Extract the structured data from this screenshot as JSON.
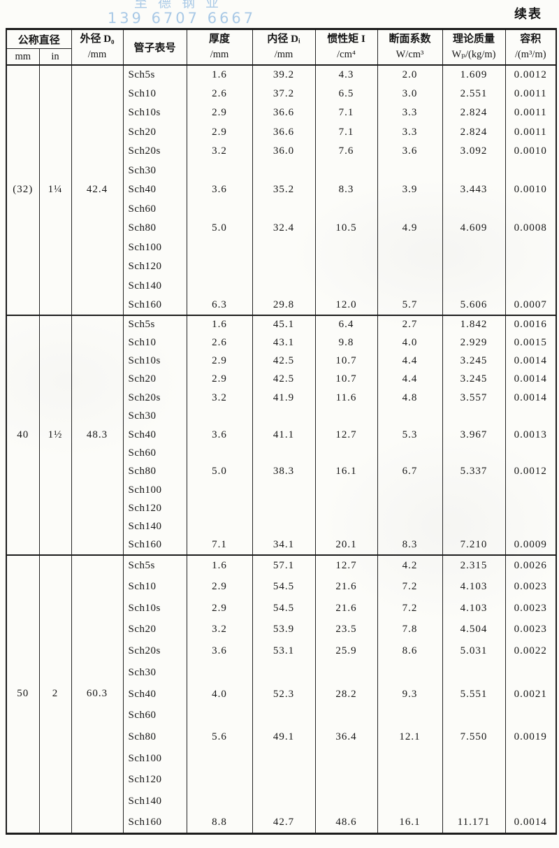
{
  "continuation_label": "续表",
  "watermark": {
    "company": "至德钢业",
    "phone": "139 6707 6667",
    "color": "#a9c9e6"
  },
  "table": {
    "header": {
      "nominal_group": "公称直径",
      "mm": "mm",
      "in": "in",
      "outer_diameter": {
        "title": "外径 D₀",
        "unit": "/mm"
      },
      "schedule": "管子表号",
      "thickness": {
        "title": "厚度",
        "unit": "/mm"
      },
      "inner_diameter": {
        "title": "内径 Dᵢ",
        "unit": "/mm"
      },
      "moment_of_inertia": {
        "title": "惯性矩 I",
        "unit": "/cm⁴"
      },
      "section_modulus": {
        "title": "断面系数",
        "unit": "W/cm³"
      },
      "theoretical_mass": {
        "title": "理论质量",
        "unit": "Wₚ/(kg/m)"
      },
      "volume": {
        "title": "容积",
        "unit": "/(m³/m)"
      }
    },
    "row_fields": [
      "schedule",
      "thickness",
      "inner_diameter",
      "moment_of_inertia",
      "section_modulus",
      "theoretical_mass",
      "volume"
    ],
    "sections": [
      {
        "nominal_mm": "(32)",
        "nominal_in": "1¼",
        "outer_diameter": "42.4",
        "rows": [
          [
            "Sch5s",
            "1.6",
            "39.2",
            "4.3",
            "2.0",
            "1.609",
            "0.0012"
          ],
          [
            "Sch10",
            "2.6",
            "37.2",
            "6.5",
            "3.0",
            "2.551",
            "0.0011"
          ],
          [
            "Sch10s",
            "2.9",
            "36.6",
            "7.1",
            "3.3",
            "2.824",
            "0.0011"
          ],
          [
            "Sch20",
            "2.9",
            "36.6",
            "7.1",
            "3.3",
            "2.824",
            "0.0011"
          ],
          [
            "Sch20s",
            "3.2",
            "36.0",
            "7.6",
            "3.6",
            "3.092",
            "0.0010"
          ],
          [
            "Sch30",
            "",
            "",
            "",
            "",
            "",
            ""
          ],
          [
            "Sch40",
            "3.6",
            "35.2",
            "8.3",
            "3.9",
            "3.443",
            "0.0010"
          ],
          [
            "Sch60",
            "",
            "",
            "",
            "",
            "",
            ""
          ],
          [
            "Sch80",
            "5.0",
            "32.4",
            "10.5",
            "4.9",
            "4.609",
            "0.0008"
          ],
          [
            "Sch100",
            "",
            "",
            "",
            "",
            "",
            ""
          ],
          [
            "Sch120",
            "",
            "",
            "",
            "",
            "",
            ""
          ],
          [
            "Sch140",
            "",
            "",
            "",
            "",
            "",
            ""
          ],
          [
            "Sch160",
            "6.3",
            "29.8",
            "12.0",
            "5.7",
            "5.606",
            "0.0007"
          ]
        ]
      },
      {
        "nominal_mm": "40",
        "nominal_in": "1½",
        "outer_diameter": "48.3",
        "rows": [
          [
            "Sch5s",
            "1.6",
            "45.1",
            "6.4",
            "2.7",
            "1.842",
            "0.0016"
          ],
          [
            "Sch10",
            "2.6",
            "43.1",
            "9.8",
            "4.0",
            "2.929",
            "0.0015"
          ],
          [
            "Sch10s",
            "2.9",
            "42.5",
            "10.7",
            "4.4",
            "3.245",
            "0.0014"
          ],
          [
            "Sch20",
            "2.9",
            "42.5",
            "10.7",
            "4.4",
            "3.245",
            "0.0014"
          ],
          [
            "Sch20s",
            "3.2",
            "41.9",
            "11.6",
            "4.8",
            "3.557",
            "0.0014"
          ],
          [
            "Sch30",
            "",
            "",
            "",
            "",
            "",
            ""
          ],
          [
            "Sch40",
            "3.6",
            "41.1",
            "12.7",
            "5.3",
            "3.967",
            "0.0013"
          ],
          [
            "Sch60",
            "",
            "",
            "",
            "",
            "",
            ""
          ],
          [
            "Sch80",
            "5.0",
            "38.3",
            "16.1",
            "6.7",
            "5.337",
            "0.0012"
          ],
          [
            "Sch100",
            "",
            "",
            "",
            "",
            "",
            ""
          ],
          [
            "Sch120",
            "",
            "",
            "",
            "",
            "",
            ""
          ],
          [
            "Sch140",
            "",
            "",
            "",
            "",
            "",
            ""
          ],
          [
            "Sch160",
            "7.1",
            "34.1",
            "20.1",
            "8.3",
            "7.210",
            "0.0009"
          ]
        ]
      },
      {
        "nominal_mm": "50",
        "nominal_in": "2",
        "outer_diameter": "60.3",
        "rows": [
          [
            "Sch5s",
            "1.6",
            "57.1",
            "12.7",
            "4.2",
            "2.315",
            "0.0026"
          ],
          [
            "Sch10",
            "2.9",
            "54.5",
            "21.6",
            "7.2",
            "4.103",
            "0.0023"
          ],
          [
            "Sch10s",
            "2.9",
            "54.5",
            "21.6",
            "7.2",
            "4.103",
            "0.0023"
          ],
          [
            "Sch20",
            "3.2",
            "53.9",
            "23.5",
            "7.8",
            "4.504",
            "0.0023"
          ],
          [
            "Sch20s",
            "3.6",
            "53.1",
            "25.9",
            "8.6",
            "5.031",
            "0.0022"
          ],
          [
            "Sch30",
            "",
            "",
            "",
            "",
            "",
            ""
          ],
          [
            "Sch40",
            "4.0",
            "52.3",
            "28.2",
            "9.3",
            "5.551",
            "0.0021"
          ],
          [
            "Sch60",
            "",
            "",
            "",
            "",
            "",
            ""
          ],
          [
            "Sch80",
            "5.6",
            "49.1",
            "36.4",
            "12.1",
            "7.550",
            "0.0019"
          ],
          [
            "Sch100",
            "",
            "",
            "",
            "",
            "",
            ""
          ],
          [
            "Sch120",
            "",
            "",
            "",
            "",
            "",
            ""
          ],
          [
            "Sch140",
            "",
            "",
            "",
            "",
            "",
            ""
          ],
          [
            "Sch160",
            "8.8",
            "42.7",
            "48.6",
            "16.1",
            "11.171",
            "0.0014"
          ]
        ]
      }
    ]
  }
}
